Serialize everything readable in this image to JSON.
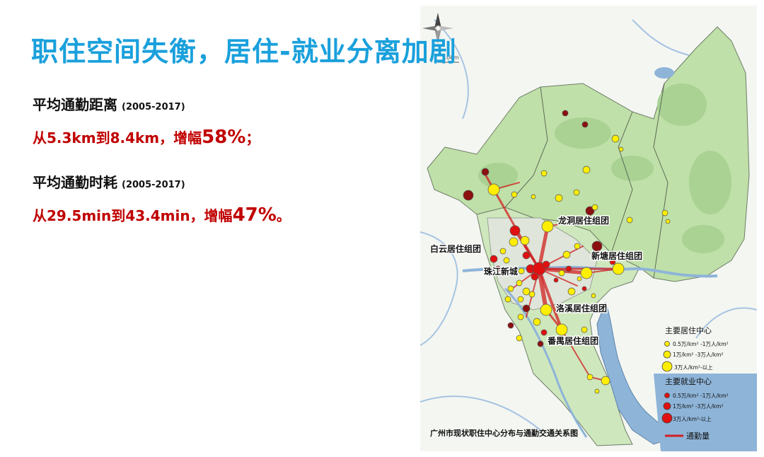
{
  "title": "职住空间失衡，居住-就业分离加剧",
  "metrics": [
    {
      "label": "平均通勤距离",
      "period": "(2005-2017)",
      "value_prefix": "从5.3km到8.4km，增幅",
      "value_pct": "58%",
      "value_suffix": "；"
    },
    {
      "label": "平均通勤时耗",
      "period": "(2005-2017)",
      "value_prefix": "从29.5min到43.4min，增幅",
      "value_pct": "47%",
      "value_suffix": "。"
    }
  ],
  "map": {
    "scale": "10km",
    "caption": "广州市现状职住中心分布与通勤交通关系图",
    "district_labels": [
      "龙洞居住组团",
      "白云居住组团",
      "新塘居住组团",
      "珠江新城",
      "洛溪居住组团",
      "番禺居住组团"
    ],
    "legend": {
      "residential_title": "主要居住中心",
      "employment_title": "主要就业中心",
      "residential_items": [
        "0.5万/km² -1万人/km²",
        "1万/km² -3万人/km²",
        "3万人/km²-以上"
      ],
      "employment_items": [
        "0.5万/km² -1万人/km²",
        "1万/km² -3万人/km²",
        "3万人/km²-以上"
      ],
      "commute_label": "通勤量"
    },
    "colors": {
      "residential": "#ffee00",
      "employment": "#e01010",
      "employment_dark": "#8b1010",
      "commute_line": "#d22020",
      "land": "#bfe0a8",
      "water": "#8eb4d8"
    }
  }
}
